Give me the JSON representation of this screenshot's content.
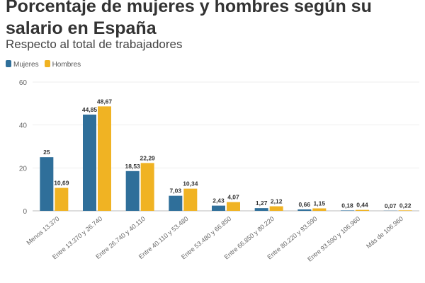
{
  "chart_data": {
    "type": "bar",
    "title": "Porcentaje de mujeres y hombres según su salario en España",
    "subtitle": "Respecto al total de trabajadores",
    "categories": [
      "Menos 13.370",
      "Entre 13.370 y 26.740",
      "Entre 26.740 y 40.110",
      "Entre 40.110 y 53.480",
      "Entre 53.480 y 66.850",
      "Entre 66.850 y 80.220",
      "Entre 80.220 y 93.590",
      "Entre 93.590 y 106.960",
      "Más de 106.960"
    ],
    "series": [
      {
        "name": "Mujeres",
        "color": "#2f6f9a",
        "values": [
          25,
          44.85,
          18.53,
          7.03,
          2.43,
          1.27,
          0.66,
          0.18,
          0.07
        ],
        "labels": [
          "25",
          "44,85",
          "18,53",
          "7,03",
          "2,43",
          "1,27",
          "0,66",
          "0,18",
          "0,07"
        ]
      },
      {
        "name": "Hombres",
        "color": "#f0b323",
        "values": [
          10.69,
          48.67,
          22.29,
          10.34,
          4.07,
          2.12,
          1.15,
          0.44,
          0.22
        ],
        "labels": [
          "10,69",
          "48,67",
          "22,29",
          "10,34",
          "4,07",
          "2,12",
          "1,15",
          "0,44",
          "0,22"
        ]
      }
    ],
    "yticks": [
      0,
      20,
      40,
      60
    ],
    "ylim": [
      0,
      60
    ],
    "grid": true,
    "legend": "top-left"
  }
}
